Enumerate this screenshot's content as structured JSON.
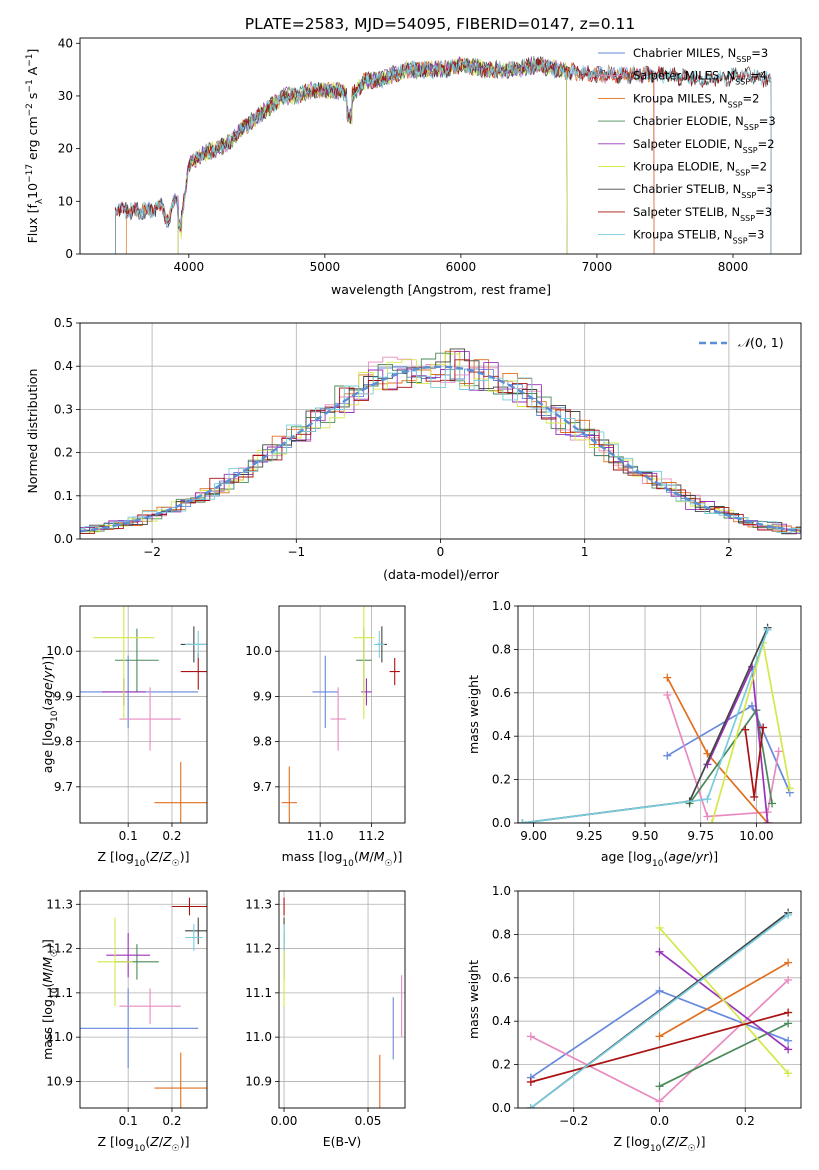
{
  "title": "PLATE=2583, MJD=54095, FIBERID=0147, z=0.11",
  "colors": {
    "Chabrier MILES": "#6688dd",
    "Salpeter MILES": "#e88ac0",
    "Kroupa MILES": "#e07020",
    "Chabrier ELODIE": "#4a8a5a",
    "Salpeter ELODIE": "#9933bb",
    "Kroupa ELODIE": "#d4e84a",
    "Chabrier STELIB": "#444444",
    "Salpeter STELIB": "#aa1111",
    "Kroupa STELIB": "#77ccdd"
  },
  "chart_data": [
    {
      "id": "spectrum",
      "type": "line",
      "title": "PLATE=2583, MJD=54095, FIBERID=0147, z=0.11",
      "xlabel": "wavelength [Angstrom, rest frame]",
      "ylabel": "Flux [fλ10⁻¹⁷ erg cm⁻² s⁻¹ A⁻¹]",
      "xlim": [
        3200,
        8500
      ],
      "ylim": [
        0,
        41
      ],
      "xticks": [
        4000,
        5000,
        6000,
        7000,
        8000
      ],
      "yticks": [
        0,
        10,
        20,
        30,
        40
      ],
      "legend_position": "right",
      "series": [
        {
          "label": "Chabrier MILES",
          "ssp": "3",
          "range": [
            3460,
            7420
          ]
        },
        {
          "label": "Salpeter MILES",
          "ssp": "4",
          "range": [
            3460,
            7420
          ]
        },
        {
          "label": "Kroupa MILES",
          "ssp": "2",
          "range": [
            3540,
            7420
          ]
        },
        {
          "label": "Chabrier ELODIE",
          "ssp": "3",
          "range": [
            3920,
            6780
          ]
        },
        {
          "label": "Salpeter ELODIE",
          "ssp": "2",
          "range": [
            3920,
            6780
          ]
        },
        {
          "label": "Kroupa ELODIE",
          "ssp": "2",
          "range": [
            3920,
            6780
          ]
        },
        {
          "label": "Chabrier STELIB",
          "ssp": "3",
          "range": [
            3460,
            8280
          ]
        },
        {
          "label": "Salpeter STELIB",
          "ssp": "3",
          "range": [
            3460,
            8280
          ]
        },
        {
          "label": "Kroupa STELIB",
          "ssp": "3",
          "range": [
            3460,
            8280
          ]
        }
      ],
      "continuum": [
        [
          3450,
          8.5
        ],
        [
          3650,
          8
        ],
        [
          3800,
          9
        ],
        [
          3850,
          6
        ],
        [
          3900,
          11
        ],
        [
          3950,
          7
        ],
        [
          4000,
          17
        ],
        [
          4100,
          19
        ],
        [
          4200,
          20
        ],
        [
          4300,
          21
        ],
        [
          4400,
          24
        ],
        [
          4500,
          26
        ],
        [
          4600,
          28
        ],
        [
          4700,
          30
        ],
        [
          4800,
          30
        ],
        [
          4900,
          31
        ],
        [
          5000,
          31
        ],
        [
          5100,
          31
        ],
        [
          5200,
          30
        ],
        [
          5300,
          33
        ],
        [
          5400,
          33
        ],
        [
          5500,
          34
        ],
        [
          5600,
          35
        ],
        [
          5700,
          35
        ],
        [
          5800,
          35
        ],
        [
          5900,
          35
        ],
        [
          6000,
          36
        ],
        [
          6200,
          35
        ],
        [
          6400,
          35
        ],
        [
          6560,
          36
        ],
        [
          6700,
          35
        ],
        [
          7000,
          34
        ],
        [
          7200,
          34
        ],
        [
          7500,
          34
        ],
        [
          7800,
          33
        ],
        [
          8100,
          34
        ],
        [
          8280,
          33
        ]
      ]
    },
    {
      "id": "residuals",
      "type": "histogram",
      "xlabel": "(data-model)/error",
      "ylabel": "Normed distribution",
      "xlim": [
        -2.5,
        2.5
      ],
      "ylim": [
        0,
        0.5
      ],
      "xticks": [
        -2,
        -1,
        0,
        1,
        2
      ],
      "yticks": [
        0.0,
        0.1,
        0.2,
        0.3,
        0.4,
        0.5
      ],
      "bin_width": 0.1,
      "grid": true,
      "legend_label": "𝒩(0,1)",
      "legend_position": "top-right",
      "reference_curve": "normal pdf, mean 0, sigma 1"
    },
    {
      "id": "age-vs-Z",
      "type": "errorbar",
      "xlabel": "Z [log10(Z/Z☉)]",
      "ylabel": "age  [log10(age/yr)]",
      "xlim": [
        -0.01,
        0.28
      ],
      "ylim": [
        9.62,
        10.1
      ],
      "xticks": [
        0.1,
        0.2
      ],
      "yticks": [
        9.7,
        9.8,
        9.9,
        10.0
      ],
      "points": [
        {
          "model": "Chabrier MILES",
          "x": 0.1,
          "xerr": 0.16,
          "y": 9.91,
          "yerr": 0.08
        },
        {
          "model": "Salpeter MILES",
          "x": 0.15,
          "xerr": 0.07,
          "y": 9.85,
          "yerr": 0.07
        },
        {
          "model": "Kroupa MILES",
          "x": 0.22,
          "xerr": 0.06,
          "y": 9.665,
          "yerr": 0.09
        },
        {
          "model": "Chabrier ELODIE",
          "x": 0.12,
          "xerr": 0.05,
          "y": 9.98,
          "yerr": 0.07
        },
        {
          "model": "Salpeter ELODIE",
          "x": 0.09,
          "xerr": 0.05,
          "y": 9.91,
          "yerr": 0.03
        },
        {
          "model": "Kroupa ELODIE",
          "x": 0.09,
          "xerr": 0.07,
          "y": 10.03,
          "yerr": 0.18
        },
        {
          "model": "Chabrier STELIB",
          "x": 0.25,
          "xerr": 0.03,
          "y": 10.015,
          "yerr": 0.04
        },
        {
          "model": "Salpeter STELIB",
          "x": 0.26,
          "xerr": 0.04,
          "y": 9.955,
          "yerr": 0.04
        },
        {
          "model": "Kroupa STELIB",
          "x": 0.26,
          "xerr": 0.03,
          "y": 10.015,
          "yerr": 0.03
        }
      ]
    },
    {
      "id": "age-vs-mass",
      "type": "errorbar",
      "xlabel": "mass [log10(M/M☉)]",
      "xlim": [
        10.84,
        11.33
      ],
      "ylim": [
        9.62,
        10.1
      ],
      "xticks": [
        11.0,
        11.2
      ],
      "yticks": [
        9.7,
        9.8,
        9.9,
        10.0
      ],
      "points": [
        {
          "model": "Chabrier MILES",
          "x": 11.02,
          "xerr": 0.05,
          "y": 9.91,
          "yerr": 0.08
        },
        {
          "model": "Salpeter MILES",
          "x": 11.07,
          "xerr": 0.03,
          "y": 9.85,
          "yerr": 0.07
        },
        {
          "model": "Kroupa MILES",
          "x": 10.88,
          "xerr": 0.03,
          "y": 9.665,
          "yerr": 0.08
        },
        {
          "model": "Chabrier ELODIE",
          "x": 11.17,
          "xerr": 0.03,
          "y": 9.98,
          "yerr": 0.07
        },
        {
          "model": "Salpeter ELODIE",
          "x": 11.18,
          "xerr": 0.02,
          "y": 9.91,
          "yerr": 0.03
        },
        {
          "model": "Kroupa ELODIE",
          "x": 11.17,
          "xerr": 0.04,
          "y": 10.03,
          "yerr": 0.18
        },
        {
          "model": "Chabrier STELIB",
          "x": 11.24,
          "xerr": 0.02,
          "y": 10.015,
          "yerr": 0.04
        },
        {
          "model": "Salpeter STELIB",
          "x": 11.29,
          "xerr": 0.02,
          "y": 9.955,
          "yerr": 0.03
        },
        {
          "model": "Kroupa STELIB",
          "x": 11.23,
          "xerr": 0.02,
          "y": 10.015,
          "yerr": 0.03
        }
      ]
    },
    {
      "id": "mass-weight-vs-age",
      "type": "line",
      "xlabel": "age  [log10(age/yr)]",
      "ylabel": "mass weight",
      "xlim": [
        8.93,
        10.2
      ],
      "ylim": [
        0,
        1
      ],
      "xticks": [
        9.0,
        9.25,
        9.5,
        9.75,
        10.0
      ],
      "yticks": [
        0.0,
        0.2,
        0.4,
        0.6,
        0.8,
        1.0
      ],
      "grid": true,
      "series": [
        {
          "model": "Chabrier MILES",
          "points": [
            [
              9.6,
              0.31
            ],
            [
              9.98,
              0.54
            ],
            [
              10.15,
              0.14
            ]
          ]
        },
        {
          "model": "Salpeter MILES",
          "points": [
            [
              9.6,
              0.59
            ],
            [
              9.78,
              0.03
            ],
            [
              10.05,
              0.05
            ],
            [
              10.1,
              0.33
            ]
          ]
        },
        {
          "model": "Kroupa MILES",
          "points": [
            [
              9.6,
              0.67
            ],
            [
              9.78,
              0.32
            ],
            [
              10.05,
              0.0
            ]
          ]
        },
        {
          "model": "Chabrier ELODIE",
          "points": [
            [
              9.7,
              0.09
            ],
            [
              10.0,
              0.52
            ],
            [
              10.07,
              0.09
            ]
          ]
        },
        {
          "model": "Salpeter ELODIE",
          "points": [
            [
              9.78,
              0.27
            ],
            [
              9.98,
              0.72
            ],
            [
              10.05,
              0.0
            ]
          ]
        },
        {
          "model": "Kroupa ELODIE",
          "points": [
            [
              9.8,
              0.0
            ],
            [
              10.03,
              0.83
            ],
            [
              10.15,
              0.16
            ]
          ]
        },
        {
          "model": "Chabrier STELIB",
          "points": [
            [
              8.95,
              0.0
            ],
            [
              9.7,
              0.1
            ],
            [
              10.05,
              0.9
            ]
          ]
        },
        {
          "model": "Salpeter STELIB",
          "points": [
            [
              9.95,
              0.43
            ],
            [
              9.99,
              0.12
            ],
            [
              10.03,
              0.44
            ]
          ]
        },
        {
          "model": "Kroupa STELIB",
          "points": [
            [
              8.95,
              0.0
            ],
            [
              9.78,
              0.11
            ],
            [
              10.05,
              0.89
            ]
          ]
        }
      ]
    },
    {
      "id": "mass-vs-Z",
      "type": "errorbar",
      "xlabel": "Z [log10(Z/Z☉)]",
      "ylabel": "mass [log10(M/M☉)]",
      "xlim": [
        -0.01,
        0.28
      ],
      "ylim": [
        10.84,
        11.33
      ],
      "xticks": [
        0.1,
        0.2
      ],
      "yticks": [
        10.9,
        11.0,
        11.1,
        11.2,
        11.3
      ],
      "points": [
        {
          "model": "Chabrier MILES",
          "x": 0.1,
          "xerr": 0.16,
          "y": 11.02,
          "yerr": 0.09
        },
        {
          "model": "Salpeter MILES",
          "x": 0.15,
          "xerr": 0.07,
          "y": 11.07,
          "yerr": 0.04
        },
        {
          "model": "Kroupa MILES",
          "x": 0.22,
          "xerr": 0.06,
          "y": 10.885,
          "yerr": 0.08
        },
        {
          "model": "Chabrier ELODIE",
          "x": 0.12,
          "xerr": 0.05,
          "y": 11.17,
          "yerr": 0.04
        },
        {
          "model": "Salpeter ELODIE",
          "x": 0.1,
          "xerr": 0.05,
          "y": 11.185,
          "yerr": 0.05
        },
        {
          "model": "Kroupa ELODIE",
          "x": 0.07,
          "xerr": 0.04,
          "y": 11.17,
          "yerr": 0.1
        },
        {
          "model": "Chabrier STELIB",
          "x": 0.26,
          "xerr": 0.03,
          "y": 11.24,
          "yerr": 0.03
        },
        {
          "model": "Salpeter STELIB",
          "x": 0.24,
          "xerr": 0.04,
          "y": 11.295,
          "yerr": 0.02
        },
        {
          "model": "Kroupa STELIB",
          "x": 0.25,
          "xerr": 0.02,
          "y": 11.225,
          "yerr": 0.03
        }
      ]
    },
    {
      "id": "mass-vs-EBV",
      "type": "errorbar",
      "xlabel": "E(B-V)",
      "xlim": [
        -0.003,
        0.072
      ],
      "ylim": [
        10.84,
        11.33
      ],
      "xticks": [
        0.0,
        0.05
      ],
      "yticks": [
        10.9,
        11.0,
        11.1,
        11.2,
        11.3
      ],
      "points": [
        {
          "model": "Chabrier MILES",
          "x": 0.065,
          "xerr": 0.0,
          "y": 11.02,
          "yerr": 0.07
        },
        {
          "model": "Salpeter MILES",
          "x": 0.07,
          "xerr": 0.0,
          "y": 11.07,
          "yerr": 0.07
        },
        {
          "model": "Kroupa MILES",
          "x": 0.057,
          "xerr": 0.0,
          "y": 10.885,
          "yerr": 0.075
        },
        {
          "model": "Chabrier ELODIE",
          "x": 0.0,
          "xerr": 0.0,
          "y": 11.17,
          "yerr": 0.04
        },
        {
          "model": "Salpeter ELODIE",
          "x": 0.0,
          "xerr": 0.0,
          "y": 11.185,
          "yerr": 0.05
        },
        {
          "model": "Kroupa ELODIE",
          "x": 0.0,
          "xerr": 0.0,
          "y": 11.17,
          "yerr": 0.1
        },
        {
          "model": "Chabrier STELIB",
          "x": 0.0,
          "xerr": 0.0,
          "y": 11.24,
          "yerr": 0.03
        },
        {
          "model": "Salpeter STELIB",
          "x": 0.0,
          "xerr": 0.0,
          "y": 11.295,
          "yerr": 0.02
        },
        {
          "model": "Kroupa STELIB",
          "x": 0.0,
          "xerr": 0.0,
          "y": 11.225,
          "yerr": 0.03
        }
      ]
    },
    {
      "id": "mass-weight-vs-Z",
      "type": "line",
      "xlabel": "Z [log10(Z/Z☉)]",
      "ylabel": "mass weight",
      "xlim": [
        -0.33,
        0.33
      ],
      "ylim": [
        0,
        1
      ],
      "xticks": [
        -0.2,
        0.0,
        0.2
      ],
      "yticks": [
        0.0,
        0.2,
        0.4,
        0.6,
        0.8,
        1.0
      ],
      "grid": true,
      "series": [
        {
          "model": "Chabrier MILES",
          "points": [
            [
              -0.3,
              0.14
            ],
            [
              0.0,
              0.54
            ],
            [
              0.3,
              0.31
            ]
          ]
        },
        {
          "model": "Salpeter MILES",
          "points": [
            [
              -0.3,
              0.33
            ],
            [
              0.0,
              0.03
            ],
            [
              0.3,
              0.59
            ]
          ]
        },
        {
          "model": "Kroupa MILES",
          "points": [
            [
              0.0,
              0.33
            ],
            [
              0.3,
              0.67
            ]
          ]
        },
        {
          "model": "Chabrier ELODIE",
          "points": [
            [
              0.0,
              0.1
            ],
            [
              0.3,
              0.39
            ]
          ]
        },
        {
          "model": "Salpeter ELODIE",
          "points": [
            [
              0.0,
              0.72
            ],
            [
              0.3,
              0.27
            ]
          ]
        },
        {
          "model": "Kroupa ELODIE",
          "points": [
            [
              0.0,
              0.83
            ],
            [
              0.3,
              0.16
            ]
          ]
        },
        {
          "model": "Chabrier STELIB",
          "points": [
            [
              -0.3,
              0.0
            ],
            [
              0.3,
              0.9
            ]
          ]
        },
        {
          "model": "Salpeter STELIB",
          "points": [
            [
              -0.3,
              0.12
            ],
            [
              0.3,
              0.44
            ]
          ]
        },
        {
          "model": "Kroupa STELIB",
          "points": [
            [
              -0.3,
              0.0
            ],
            [
              0.3,
              0.89
            ]
          ]
        }
      ]
    }
  ]
}
